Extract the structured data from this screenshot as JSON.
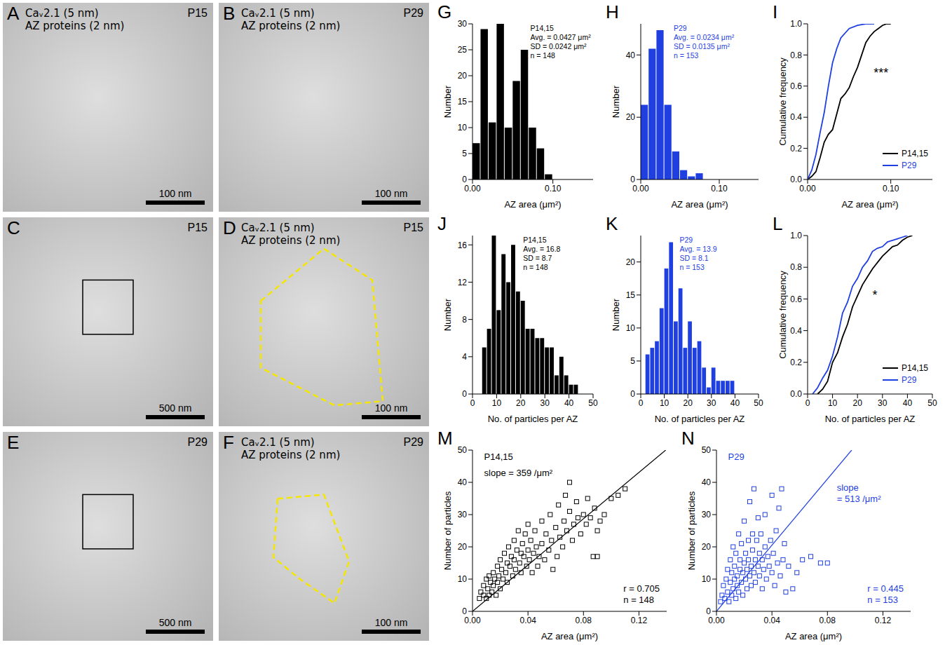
{
  "images": [
    {
      "panel": "A",
      "labels": [
        "Caᵥ2.1 (5 nm)",
        "AZ proteins (2 nm)"
      ],
      "age": "P15",
      "scale_bar": "100 nm"
    },
    {
      "panel": "B",
      "labels": [
        "Caᵥ2.1 (5 nm)",
        "AZ proteins (2 nm)"
      ],
      "age": "P29",
      "scale_bar": "100 nm"
    },
    {
      "panel": "C",
      "labels": [],
      "age": "P15",
      "scale_bar": "500 nm"
    },
    {
      "panel": "D",
      "labels": [
        "Caᵥ2.1 (5 nm)",
        "AZ proteins (2 nm)"
      ],
      "age": "P15",
      "scale_bar": "100 nm"
    },
    {
      "panel": "E",
      "labels": [],
      "age": "P29",
      "scale_bar": "500 nm"
    },
    {
      "panel": "F",
      "labels": [
        "Caᵥ2.1 (5 nm)",
        "AZ proteins (2 nm)"
      ],
      "age": "P29",
      "scale_bar": "100 nm"
    }
  ],
  "chart_data": [
    {
      "panel": "G",
      "type": "histogram",
      "color": "#000000",
      "grid": false,
      "bins": [
        0,
        0.01,
        0.02,
        0.03,
        0.04,
        0.05,
        0.06,
        0.07,
        0.08,
        0.09,
        0.1
      ],
      "counts": [
        7,
        29,
        11,
        30,
        10,
        19,
        25,
        10,
        6,
        1
      ],
      "xlim": [
        0,
        0.15
      ],
      "xticks": [
        {
          "value": 0,
          "label": "0.00"
        },
        {
          "value": 0.1,
          "label": "0.10"
        }
      ],
      "ylim": [
        0,
        30
      ],
      "yticks": [
        0,
        5,
        10,
        15,
        20,
        25,
        30
      ],
      "x_label": "AZ area (μm²)",
      "y_label": "Number",
      "annotations": [
        "P14,15",
        "Avg. = 0.0427 μm²",
        "SD = 0.0242 μm²",
        "n = 148"
      ]
    },
    {
      "panel": "H",
      "type": "histogram",
      "color": "#1f3fe0",
      "grid": false,
      "bins": [
        0,
        0.01,
        0.02,
        0.03,
        0.04,
        0.05,
        0.06,
        0.07,
        0.08
      ],
      "counts": [
        24,
        42,
        48,
        24,
        9,
        3,
        1,
        2
      ],
      "xlim": [
        0,
        0.15
      ],
      "xticks": [
        {
          "value": 0,
          "label": "0.00"
        },
        {
          "value": 0.1,
          "label": "0.10"
        }
      ],
      "ylim": [
        0,
        50
      ],
      "yticks": [
        0,
        20,
        40
      ],
      "x_label": "AZ area (μm²)",
      "y_label": "Number",
      "annotations": [
        "P29",
        "Avg. = 0.0234 μm²",
        "SD = 0.0135 μm²",
        "n = 153"
      ]
    },
    {
      "panel": "I",
      "type": "line",
      "grid": false,
      "legend": "lower right",
      "series": [
        {
          "name": "P14,15",
          "color": "#000000",
          "x": [
            0,
            0.005,
            0.01,
            0.015,
            0.02,
            0.025,
            0.03,
            0.035,
            0.04,
            0.045,
            0.05,
            0.055,
            0.06,
            0.065,
            0.07,
            0.075,
            0.08,
            0.085,
            0.09,
            0.095,
            0.1
          ],
          "values": [
            0,
            0.02,
            0.05,
            0.14,
            0.24,
            0.29,
            0.32,
            0.42,
            0.52,
            0.55,
            0.59,
            0.66,
            0.72,
            0.8,
            0.88,
            0.92,
            0.95,
            0.97,
            0.99,
            1,
            1
          ]
        },
        {
          "name": "P29",
          "color": "#1f3fe0",
          "x": [
            0,
            0.005,
            0.01,
            0.015,
            0.02,
            0.025,
            0.03,
            0.035,
            0.04,
            0.05,
            0.06,
            0.07,
            0.08
          ],
          "values": [
            0,
            0.06,
            0.16,
            0.3,
            0.43,
            0.6,
            0.75,
            0.84,
            0.91,
            0.97,
            0.99,
            1,
            1
          ]
        }
      ],
      "xlim": [
        0,
        0.15
      ],
      "xticks": [
        {
          "value": 0,
          "label": "0.00"
        },
        {
          "value": 0.1,
          "label": "0.10"
        }
      ],
      "ylim": [
        0,
        1
      ],
      "yticks": [
        {
          "value": 0,
          "label": "0.0"
        },
        {
          "value": 0.2,
          "label": "0.2"
        },
        {
          "value": 0.4,
          "label": "0.4"
        },
        {
          "value": 0.6,
          "label": "0.6"
        },
        {
          "value": 0.8,
          "label": "0.8"
        },
        {
          "value": 1,
          "label": "1.0"
        }
      ],
      "x_label": "AZ area (μm²)",
      "y_label": "Cumulative frequency",
      "annotations": [
        "***"
      ]
    },
    {
      "panel": "J",
      "type": "histogram",
      "color": "#000000",
      "grid": false,
      "bins": [
        4,
        6,
        8,
        10,
        12,
        14,
        16,
        18,
        20,
        22,
        24,
        26,
        28,
        30,
        32,
        34,
        36,
        38,
        40,
        42,
        44
      ],
      "counts": [
        5,
        7,
        17,
        9,
        15,
        12,
        16,
        11,
        10,
        7,
        7,
        6,
        6,
        5,
        5,
        2,
        4,
        2,
        1,
        1
      ],
      "xlim": [
        0,
        50
      ],
      "xticks": [
        0,
        10,
        20,
        30,
        40,
        50
      ],
      "ylim": [
        0,
        17
      ],
      "yticks": [
        0,
        4,
        8,
        12,
        16
      ],
      "x_label": "No. of particles per AZ",
      "y_label": "Number",
      "annotations": [
        "P14,15",
        "Avg. = 16.8",
        "SD = 8.7",
        "n = 148"
      ]
    },
    {
      "panel": "K",
      "type": "histogram",
      "color": "#1f3fe0",
      "grid": false,
      "bins": [
        2,
        4,
        6,
        8,
        10,
        12,
        14,
        16,
        18,
        20,
        22,
        24,
        26,
        28,
        30,
        32,
        34,
        36,
        38,
        40
      ],
      "counts": [
        6,
        7,
        8,
        13,
        19,
        23,
        11,
        16,
        7,
        11,
        7,
        8,
        4,
        1,
        4,
        2,
        2,
        2,
        2
      ],
      "xlim": [
        0,
        50
      ],
      "xticks": [
        0,
        10,
        20,
        30,
        40,
        50
      ],
      "ylim": [
        0,
        24
      ],
      "yticks": [
        0,
        5,
        10,
        15,
        20
      ],
      "x_label": "No. of particles per AZ",
      "y_label": "Number",
      "annotations": [
        "P29",
        "Avg. = 13.9",
        "SD = 8.1",
        "n = 153"
      ]
    },
    {
      "panel": "L",
      "type": "line",
      "grid": false,
      "legend": "lower right",
      "series": [
        {
          "name": "P14,15",
          "color": "#000000",
          "x": [
            4,
            6,
            8,
            10,
            12,
            14,
            16,
            18,
            20,
            22,
            24,
            26,
            28,
            30,
            32,
            34,
            36,
            38,
            40,
            42
          ],
          "values": [
            0,
            0.03,
            0.08,
            0.2,
            0.26,
            0.36,
            0.44,
            0.55,
            0.62,
            0.69,
            0.74,
            0.79,
            0.83,
            0.87,
            0.9,
            0.93,
            0.94,
            0.97,
            0.99,
            1
          ]
        },
        {
          "name": "P29",
          "color": "#1f3fe0",
          "x": [
            2,
            4,
            6,
            8,
            10,
            12,
            14,
            16,
            18,
            20,
            22,
            24,
            26,
            28,
            30,
            32,
            34,
            36,
            38,
            40
          ],
          "values": [
            0,
            0.04,
            0.1,
            0.15,
            0.24,
            0.36,
            0.51,
            0.58,
            0.68,
            0.73,
            0.8,
            0.84,
            0.9,
            0.92,
            0.93,
            0.96,
            0.97,
            0.98,
            0.99,
            1
          ]
        }
      ],
      "xlim": [
        0,
        50
      ],
      "xticks": [
        0,
        10,
        20,
        30,
        40,
        50
      ],
      "ylim": [
        0,
        1
      ],
      "yticks": [
        {
          "value": 0,
          "label": "0.0"
        },
        {
          "value": 0.2,
          "label": "0.2"
        },
        {
          "value": 0.4,
          "label": "0.4"
        },
        {
          "value": 0.6,
          "label": "0.6"
        },
        {
          "value": 0.8,
          "label": "0.8"
        },
        {
          "value": 1,
          "label": "1.0"
        }
      ],
      "x_label": "No. of particles per AZ",
      "y_label": "Cumulative frequency",
      "annotations": [
        "*"
      ]
    },
    {
      "panel": "M",
      "type": "scatter",
      "grid": false,
      "color": "#000000",
      "marker": "square_open",
      "fit_slope": 359,
      "x": [
        0.005,
        0.006,
        0.008,
        0.008,
        0.01,
        0.01,
        0.011,
        0.012,
        0.012,
        0.013,
        0.014,
        0.015,
        0.015,
        0.016,
        0.017,
        0.018,
        0.018,
        0.019,
        0.02,
        0.02,
        0.021,
        0.022,
        0.023,
        0.024,
        0.025,
        0.025,
        0.026,
        0.027,
        0.028,
        0.029,
        0.03,
        0.03,
        0.031,
        0.032,
        0.033,
        0.034,
        0.035,
        0.035,
        0.036,
        0.037,
        0.038,
        0.039,
        0.04,
        0.04,
        0.041,
        0.042,
        0.043,
        0.044,
        0.045,
        0.046,
        0.047,
        0.048,
        0.05,
        0.05,
        0.052,
        0.053,
        0.055,
        0.056,
        0.057,
        0.058,
        0.06,
        0.061,
        0.062,
        0.063,
        0.065,
        0.066,
        0.067,
        0.068,
        0.07,
        0.07,
        0.072,
        0.073,
        0.075,
        0.076,
        0.078,
        0.08,
        0.082,
        0.083,
        0.085,
        0.087,
        0.088,
        0.09,
        0.09,
        0.092,
        0.095,
        0.1,
        0.105,
        0.11
      ],
      "values": [
        4,
        6,
        5,
        8,
        4,
        10,
        7,
        5,
        11,
        9,
        6,
        12,
        8,
        10,
        5,
        14,
        9,
        11,
        16,
        7,
        13,
        10,
        18,
        12,
        15,
        9,
        20,
        14,
        17,
        11,
        22,
        16,
        13,
        19,
        25,
        15,
        18,
        12,
        21,
        17,
        24,
        14,
        19,
        27,
        16,
        22,
        12,
        18,
        25,
        20,
        14,
        17,
        21,
        28,
        16,
        24,
        19,
        30,
        22,
        13,
        26,
        17,
        33,
        23,
        20,
        28,
        36,
        25,
        31,
        40,
        22,
        27,
        34,
        29,
        24,
        30,
        27,
        35,
        29,
        17,
        32,
        25,
        17,
        28,
        30,
        35,
        36,
        38
      ],
      "xlim": [
        0,
        0.14
      ],
      "xticks": [
        {
          "value": 0,
          "label": "0.00"
        },
        {
          "value": 0.04,
          "label": "0.04"
        },
        {
          "value": 0.08,
          "label": "0.08"
        },
        {
          "value": 0.12,
          "label": "0.12"
        }
      ],
      "ylim": [
        0,
        50
      ],
      "yticks": [
        0,
        10,
        20,
        30,
        40,
        50
      ],
      "x_label": "AZ area (μm²)",
      "y_label": "Number of particles",
      "annotations": [
        "P14,15",
        "slope = 359 /μm²",
        "r = 0.705",
        "n = 148"
      ]
    },
    {
      "panel": "N",
      "type": "scatter",
      "grid": false,
      "color": "#1f3fe0",
      "marker": "square_open",
      "fit_slope": 513,
      "x": [
        0.003,
        0.004,
        0.005,
        0.006,
        0.007,
        0.008,
        0.008,
        0.009,
        0.01,
        0.01,
        0.011,
        0.011,
        0.012,
        0.012,
        0.013,
        0.013,
        0.014,
        0.014,
        0.015,
        0.015,
        0.016,
        0.016,
        0.017,
        0.017,
        0.018,
        0.018,
        0.019,
        0.019,
        0.02,
        0.02,
        0.021,
        0.021,
        0.022,
        0.022,
        0.023,
        0.023,
        0.024,
        0.024,
        0.025,
        0.025,
        0.026,
        0.026,
        0.027,
        0.027,
        0.028,
        0.028,
        0.029,
        0.03,
        0.03,
        0.031,
        0.031,
        0.032,
        0.033,
        0.033,
        0.034,
        0.035,
        0.035,
        0.036,
        0.037,
        0.038,
        0.039,
        0.04,
        0.04,
        0.041,
        0.042,
        0.043,
        0.044,
        0.045,
        0.046,
        0.047,
        0.048,
        0.049,
        0.05,
        0.052,
        0.055,
        0.058,
        0.062,
        0.068,
        0.075,
        0.08
      ],
      "values": [
        3,
        5,
        8,
        4,
        10,
        6,
        13,
        3,
        9,
        16,
        5,
        12,
        7,
        20,
        10,
        14,
        4,
        18,
        8,
        11,
        24,
        6,
        13,
        16,
        9,
        21,
        12,
        5,
        15,
        28,
        10,
        18,
        7,
        13,
        22,
        16,
        11,
        34,
        14,
        8,
        19,
        24,
        12,
        38,
        16,
        9,
        22,
        14,
        29,
        11,
        18,
        24,
        7,
        16,
        13,
        20,
        30,
        10,
        17,
        14,
        22,
        12,
        36,
        18,
        8,
        25,
        15,
        32,
        11,
        38,
        16,
        21,
        6,
        14,
        7,
        12,
        16,
        17,
        15,
        15
      ],
      "xlim": [
        0,
        0.14
      ],
      "xticks": [
        {
          "value": 0,
          "label": "0.00"
        },
        {
          "value": 0.04,
          "label": "0.04"
        },
        {
          "value": 0.08,
          "label": "0.08"
        },
        {
          "value": 0.12,
          "label": "0.12"
        }
      ],
      "ylim": [
        0,
        50
      ],
      "yticks": [
        0,
        10,
        20,
        30,
        40,
        50
      ],
      "x_label": "AZ area (μm²)",
      "y_label": "Number of particles",
      "annotations": [
        "P29",
        "slope",
        "= 513 /μm²",
        "r = 0.445",
        "n = 153"
      ]
    }
  ]
}
